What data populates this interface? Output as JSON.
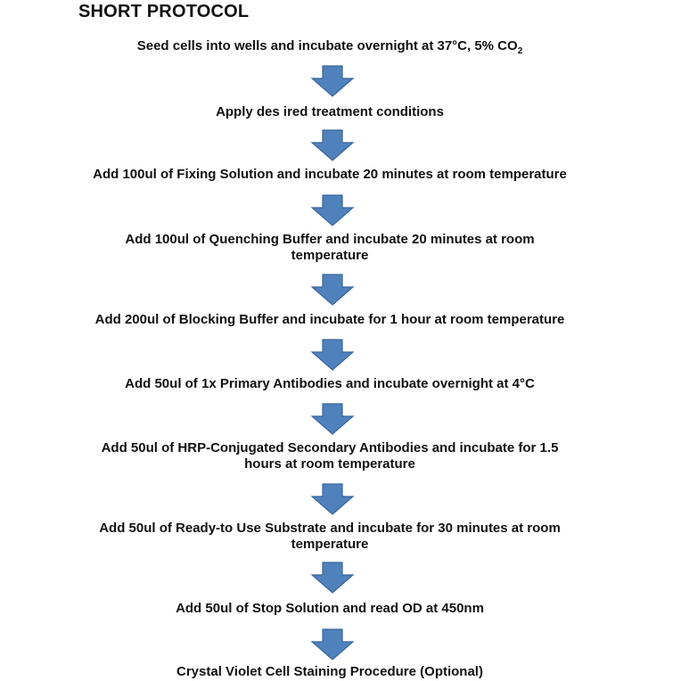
{
  "title": "SHORT PROTOCOL",
  "arrow_color": "#4f81bd",
  "steps": [
    {
      "text": "Seed cells into wells and incubate overnight at 37°C, 5% CO",
      "sub": "2"
    },
    {
      "text": "Apply des ired treatment conditions"
    },
    {
      "text": "Add 100ul of Fixing Solution and incubate 20 minutes at room temperature"
    },
    {
      "text": "Add 100ul of Quenching Buffer and incubate 20 minutes at room temperature"
    },
    {
      "text": "Add 200ul of Blocking Buffer and incubate for 1 hour at room temperature"
    },
    {
      "text": "Add 50ul of 1x Primary Antibodies and incubate overnight at 4°C"
    },
    {
      "text": "Add 50ul of HRP-Conjugated Secondary Antibodies and incubate for 1.5 hours at room temperature"
    },
    {
      "text": "Add 50ul of Ready-to Use Substrate and incubate for 30 minutes at room temperature"
    },
    {
      "text": "Add 50ul of Stop Solution and read OD at 450nm"
    },
    {
      "text": "Crystal Violet Cell Staining Procedure (Optional)"
    }
  ]
}
